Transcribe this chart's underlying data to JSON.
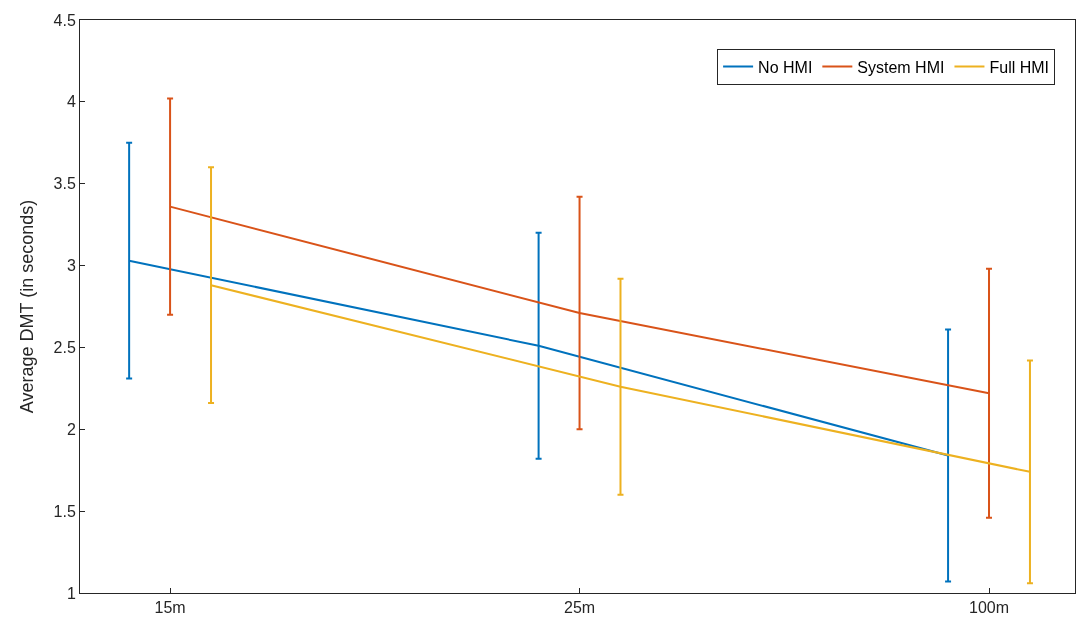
{
  "chart_data": {
    "type": "line",
    "ylabel": "Average DMT (in seconds)",
    "categories": [
      "15m",
      "25m",
      "100m"
    ],
    "ylim": [
      1,
      4.5
    ],
    "yticks": [
      1,
      1.5,
      2,
      2.5,
      3,
      3.5,
      4,
      4.5
    ],
    "legend": "top right",
    "marker": "none",
    "line_style": "solid",
    "series": [
      {
        "name": "No HMI",
        "color": "#0072bd",
        "values": [
          3.03,
          2.51,
          1.84
        ],
        "errors": [
          0.72,
          0.69,
          0.77
        ]
      },
      {
        "name": "System HMI",
        "color": "#d95319",
        "values": [
          3.36,
          2.71,
          2.22
        ],
        "errors": [
          0.66,
          0.71,
          0.76
        ]
      },
      {
        "name": "Full HMI",
        "color": "#edb120",
        "values": [
          2.88,
          2.26,
          1.74
        ],
        "errors": [
          0.72,
          0.66,
          0.68
        ]
      }
    ]
  }
}
